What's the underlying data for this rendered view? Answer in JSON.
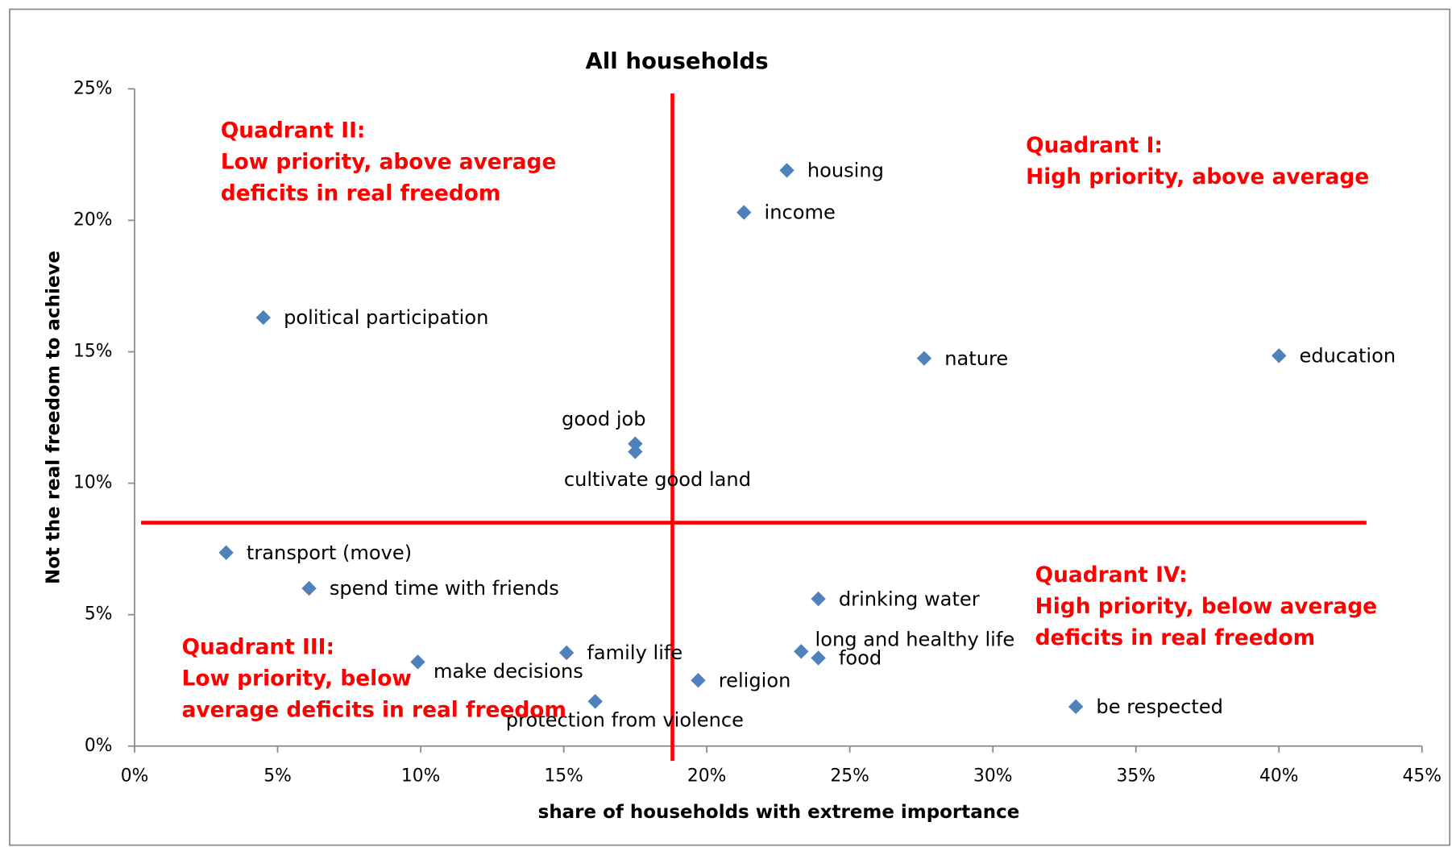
{
  "chart_data": {
    "type": "scatter",
    "title": "All households",
    "x_label": "share of households with extreme importance",
    "y_label": "Not the real freedom to achieve",
    "color": "#4f81bd",
    "xlim": [
      0,
      45
    ],
    "ylim": [
      0,
      25
    ],
    "xticks": [
      {
        "value": 0,
        "label": "0%"
      },
      {
        "value": 5,
        "label": "5%"
      },
      {
        "value": 10,
        "label": "10%"
      },
      {
        "value": 15,
        "label": "15%"
      },
      {
        "value": 20,
        "label": "20%"
      },
      {
        "value": 25,
        "label": "25%"
      },
      {
        "value": 30,
        "label": "30%"
      },
      {
        "value": 35,
        "label": "35%"
      },
      {
        "value": 40,
        "label": "40%"
      },
      {
        "value": 45,
        "label": "45%"
      }
    ],
    "yticks": [
      {
        "value": 0,
        "label": "0%"
      },
      {
        "value": 5,
        "label": "5%"
      },
      {
        "value": 10,
        "label": "10%"
      },
      {
        "value": 15,
        "label": "15%"
      },
      {
        "value": 20,
        "label": "20%"
      },
      {
        "value": 25,
        "label": "25%"
      }
    ],
    "points": [
      {
        "name": "housing",
        "x": 22.8,
        "y": 21.9
      },
      {
        "name": "income",
        "x": 21.3,
        "y": 20.3
      },
      {
        "name": "political participation",
        "x": 4.5,
        "y": 16.3
      },
      {
        "name": "nature",
        "x": 27.6,
        "y": 14.75
      },
      {
        "name": "education",
        "x": 40.0,
        "y": 14.85
      },
      {
        "name": "good job",
        "x": 17.5,
        "y": 11.5
      },
      {
        "name": "cultivate good land",
        "x": 17.5,
        "y": 11.2
      },
      {
        "name": "transport (move)",
        "x": 3.2,
        "y": 7.36
      },
      {
        "name": "spend time with friends",
        "x": 6.1,
        "y": 6.0
      },
      {
        "name": "drinking water",
        "x": 23.9,
        "y": 5.6
      },
      {
        "name": "long and healthy life",
        "x": 23.3,
        "y": 3.6
      },
      {
        "name": "food",
        "x": 23.9,
        "y": 3.35
      },
      {
        "name": "family life",
        "x": 15.1,
        "y": 3.55
      },
      {
        "name": "make decisions",
        "x": 9.9,
        "y": 3.2
      },
      {
        "name": "religion",
        "x": 19.7,
        "y": 2.5
      },
      {
        "name": "protection from violence",
        "x": 16.1,
        "y": 1.7
      },
      {
        "name": "be respected",
        "x": 32.9,
        "y": 1.5
      }
    ],
    "average_lines": {
      "x": 18.8,
      "y": 8.5,
      "color": "#ff0000"
    },
    "annotations": [
      {
        "lines": [
          "Quadrant I:",
          "High priority, above average"
        ]
      },
      {
        "lines": [
          "Quadrant II:",
          "Low priority, above average",
          "deficits in real freedom"
        ]
      },
      {
        "lines": [
          "Quadrant III:",
          "Low priority, below",
          "average  deficits in real freedom"
        ]
      },
      {
        "lines": [
          "Quadrant IV:",
          "High priority, below average",
          "deficits in real freedom"
        ]
      }
    ]
  }
}
